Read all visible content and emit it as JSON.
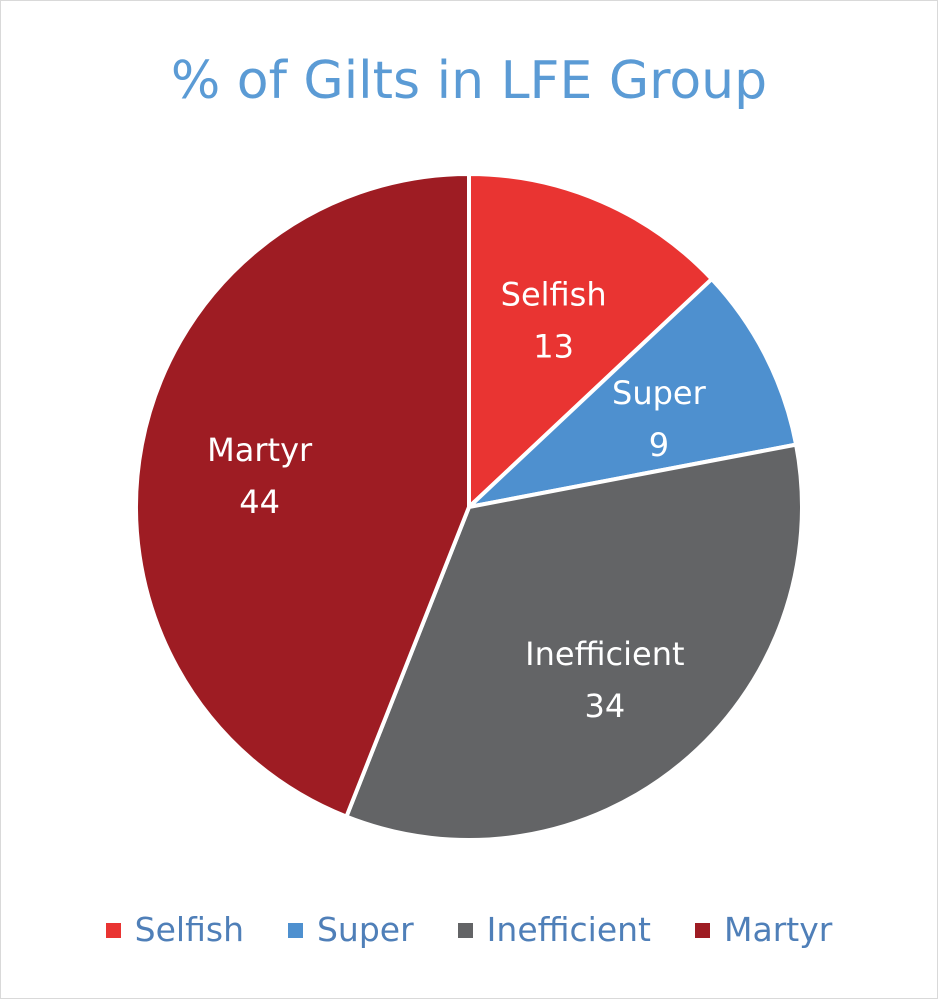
{
  "chart_data": {
    "type": "pie",
    "title": "% of Gilts in LFE Group",
    "slices": [
      {
        "label": "Selfish",
        "value": 13,
        "color": "#e93432"
      },
      {
        "label": "Super",
        "value": 9,
        "color": "#4e90cf"
      },
      {
        "label": "Inefficient",
        "value": 34,
        "color": "#636466"
      },
      {
        "label": "Martyr",
        "value": 44,
        "color": "#9e1c23"
      }
    ],
    "start_angle_deg": 0,
    "direction": "clockwise",
    "data_labels": "category and value",
    "legend_position": "bottom",
    "title_color": "#5b9bd5"
  },
  "legend": {
    "items": [
      {
        "label": "Selfish",
        "color": "#e93432"
      },
      {
        "label": "Super",
        "color": "#4e90cf"
      },
      {
        "label": "Inefficient",
        "color": "#636466"
      },
      {
        "label": "Martyr",
        "color": "#9e1c23"
      }
    ]
  }
}
